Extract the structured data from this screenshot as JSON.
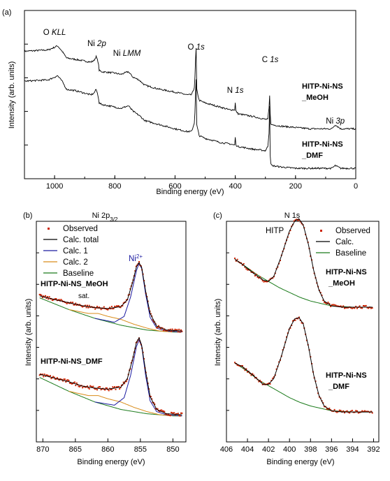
{
  "figure": {
    "panels": [
      "(a)",
      "(b)",
      "(c)"
    ]
  },
  "chart_data": [
    {
      "type": "line",
      "panel": "(a)",
      "title": "",
      "xlabel": "Binding energy (eV)",
      "ylabel": "Intensity (arb. units)",
      "xlim": [
        1100,
        0
      ],
      "x_reversed": true,
      "xticks": [
        1000,
        800,
        600,
        400,
        200,
        0
      ],
      "y_tick_labels": false,
      "peak_annotations": [
        {
          "label": "O KLL",
          "x": 1000
        },
        {
          "label": "Ni 2p",
          "x": 860
        },
        {
          "label": "Ni LMM",
          "x": 760
        },
        {
          "label": "O 1s",
          "x": 530
        },
        {
          "label": "N 1s",
          "x": 400
        },
        {
          "label": "C 1s",
          "x": 284
        },
        {
          "label": "Ni 3p",
          "x": 68
        }
      ],
      "series": [
        {
          "name": "HITP-Ni-NS_MeOH",
          "color": "#000000",
          "x": [
            1100,
            1020,
            990,
            975,
            960,
            930,
            880,
            870,
            862,
            855,
            852,
            845,
            800,
            780,
            755,
            740,
            720,
            700,
            650,
            600,
            560,
            545,
            535,
            532,
            530,
            528,
            520,
            500,
            450,
            420,
            402,
            400,
            398,
            390,
            340,
            300,
            292,
            288,
            285,
            284,
            282,
            278,
            250,
            200,
            150,
            100,
            80,
            68,
            50,
            0
          ],
          "y": [
            0.88,
            0.89,
            0.92,
            0.88,
            0.83,
            0.82,
            0.8,
            0.81,
            0.84,
            0.8,
            0.74,
            0.73,
            0.72,
            0.71,
            0.73,
            0.69,
            0.67,
            0.63,
            0.6,
            0.58,
            0.56,
            0.56,
            0.62,
            0.82,
            0.9,
            0.6,
            0.52,
            0.5,
            0.47,
            0.45,
            0.45,
            0.5,
            0.44,
            0.42,
            0.4,
            0.38,
            0.38,
            0.46,
            0.6,
            0.42,
            0.35,
            0.34,
            0.33,
            0.32,
            0.31,
            0.31,
            0.31,
            0.34,
            0.31,
            0.31
          ]
        },
        {
          "name": "HITP-Ni-NS_DMF",
          "color": "#000000",
          "x": [
            1100,
            1020,
            990,
            975,
            960,
            930,
            880,
            870,
            862,
            855,
            852,
            845,
            800,
            780,
            755,
            740,
            720,
            700,
            650,
            600,
            560,
            545,
            535,
            532,
            530,
            528,
            520,
            500,
            450,
            420,
            402,
            400,
            398,
            390,
            340,
            300,
            292,
            288,
            285,
            284,
            282,
            278,
            250,
            200,
            150,
            100,
            80,
            68,
            50,
            0
          ],
          "y": [
            0.66,
            0.67,
            0.7,
            0.66,
            0.6,
            0.59,
            0.56,
            0.57,
            0.6,
            0.55,
            0.5,
            0.49,
            0.47,
            0.46,
            0.48,
            0.44,
            0.41,
            0.37,
            0.34,
            0.31,
            0.29,
            0.29,
            0.36,
            0.58,
            0.67,
            0.34,
            0.26,
            0.24,
            0.21,
            0.2,
            0.19,
            0.25,
            0.19,
            0.18,
            0.16,
            0.15,
            0.18,
            0.28,
            0.58,
            0.12,
            0.05,
            0.04,
            0.03,
            0.02,
            0.02,
            0.02,
            0.02,
            0.04,
            0.02,
            0.02
          ]
        }
      ]
    },
    {
      "type": "line",
      "panel": "(b)",
      "title": "Ni 2p",
      "title_sub": "3/2",
      "xlabel": "Binding energy (eV)",
      "ylabel": "Intensity (arb. units)",
      "xlim": [
        871,
        848
      ],
      "x_reversed": true,
      "xticks": [
        870,
        865,
        860,
        855,
        850
      ],
      "y_tick_labels": false,
      "legend": [
        {
          "label": "Observed",
          "color": "#cc2200",
          "kind": "dot"
        },
        {
          "label": "Calc. total",
          "color": "#000000",
          "kind": "line"
        },
        {
          "label": "Calc. 1",
          "color": "#1a1aa0",
          "kind": "line"
        },
        {
          "label": "Calc. 2",
          "color": "#d98c1a",
          "kind": "line"
        },
        {
          "label": "Baseline",
          "color": "#1a7a1a",
          "kind": "line"
        }
      ],
      "annotations": [
        {
          "text": "Ni",
          "sup": "2+",
          "x": 855
        },
        {
          "text": "sat.",
          "x": 862
        }
      ],
      "spectra": [
        {
          "name": "HITP-Ni-NS_MeOH",
          "baseline": {
            "x": [
              870.5,
              866,
              862,
              858,
              854,
              850,
              848.5
            ],
            "y": [
              0.46,
              0.34,
              0.25,
              0.18,
              0.13,
              0.11,
              0.11
            ]
          },
          "calc1": {
            "x": [
              862,
              859,
              857.5,
              856.5,
              855.6,
              855.2,
              854.8,
              854.2,
              853.5,
              852.5,
              851,
              848.5
            ],
            "y": [
              0.25,
              0.21,
              0.27,
              0.47,
              0.74,
              0.81,
              0.76,
              0.5,
              0.26,
              0.15,
              0.12,
              0.11
            ]
          },
          "calc2": {
            "x": [
              866,
              863,
              861.5,
              860,
              858,
              856,
              854,
              852,
              850
            ],
            "y": [
              0.34,
              0.3,
              0.3,
              0.27,
              0.24,
              0.19,
              0.15,
              0.12,
              0.11
            ]
          },
          "total": {
            "x": [
              870.5,
              868,
              866,
              864,
              862,
              860,
              858,
              857,
              856.2,
              855.6,
              855.2,
              854.8,
              854.2,
              853.5,
              852.5,
              851,
              848.5
            ],
            "y": [
              0.48,
              0.44,
              0.41,
              0.38,
              0.36,
              0.35,
              0.37,
              0.44,
              0.62,
              0.78,
              0.82,
              0.77,
              0.53,
              0.3,
              0.17,
              0.13,
              0.12
            ]
          }
        },
        {
          "name": "HITP-Ni-NS_DMF",
          "baseline": {
            "x": [
              870.5,
              866,
              862,
              858,
              854,
              850,
              848.5
            ],
            "y": [
              0.46,
              0.33,
              0.23,
              0.16,
              0.12,
              0.1,
              0.1
            ]
          },
          "calc1": {
            "x": [
              862,
              859,
              857.5,
              856.5,
              855.6,
              855.2,
              854.8,
              854.2,
              853.5,
              852.5,
              851,
              848.5
            ],
            "y": [
              0.23,
              0.2,
              0.27,
              0.48,
              0.75,
              0.81,
              0.75,
              0.48,
              0.24,
              0.14,
              0.11,
              0.1
            ]
          },
          "calc2": {
            "x": [
              866,
              863,
              861.5,
              860,
              858,
              856,
              854,
              852,
              850
            ],
            "y": [
              0.33,
              0.29,
              0.29,
              0.26,
              0.23,
              0.18,
              0.14,
              0.11,
              0.1
            ]
          },
          "total": {
            "x": [
              870.5,
              868,
              866,
              864,
              862,
              860,
              858,
              857,
              856.2,
              855.6,
              855.2,
              854.8,
              854.2,
              853.5,
              852.5,
              851,
              848.5
            ],
            "y": [
              0.49,
              0.45,
              0.42,
              0.38,
              0.36,
              0.35,
              0.37,
              0.45,
              0.63,
              0.79,
              0.83,
              0.76,
              0.52,
              0.28,
              0.16,
              0.12,
              0.11
            ]
          }
        }
      ]
    },
    {
      "type": "line",
      "panel": "(c)",
      "title": "N 1s",
      "xlabel": "Binding energy (eV)",
      "ylabel": "Intensity (arb. units)",
      "xlim": [
        406,
        391.5
      ],
      "x_reversed": true,
      "xticks": [
        406,
        404,
        402,
        400,
        398,
        396,
        394,
        392
      ],
      "y_tick_labels": false,
      "legend": [
        {
          "label": "Observed",
          "color": "#cc2200",
          "kind": "dot"
        },
        {
          "label": "Calc.",
          "color": "#000000",
          "kind": "line"
        },
        {
          "label": "Baseline",
          "color": "#1a7a1a",
          "kind": "line"
        }
      ],
      "annotations": [
        {
          "text": "HITP",
          "x": 400.2
        }
      ],
      "spectra": [
        {
          "name": "HITP-Ni-NS_MeOH",
          "baseline": {
            "x": [
              405.2,
              404,
              403,
              402,
              401,
              400,
              399,
              398,
              397,
              396,
              394,
              392
            ],
            "y": [
              0.64,
              0.57,
              0.51,
              0.46,
              0.41,
              0.37,
              0.33,
              0.3,
              0.28,
              0.26,
              0.25,
              0.25
            ]
          },
          "calc": {
            "x": [
              405.2,
              404.5,
              403.5,
              402.5,
              402,
              401.5,
              400.8,
              400,
              399.5,
              399.1,
              398.7,
              398.2,
              397.7,
              397.2,
              396.7,
              396,
              395,
              394,
              392
            ],
            "y": [
              0.64,
              0.6,
              0.53,
              0.47,
              0.46,
              0.5,
              0.66,
              0.87,
              0.95,
              0.97,
              0.92,
              0.76,
              0.55,
              0.39,
              0.3,
              0.26,
              0.25,
              0.25,
              0.25
            ]
          }
        },
        {
          "name": "HITP-Ni-NS_DMF",
          "baseline": {
            "x": [
              405.2,
              404,
              403,
              402,
              401,
              400,
              399,
              398,
              397,
              396,
              394,
              392
            ],
            "y": [
              0.62,
              0.55,
              0.48,
              0.43,
              0.38,
              0.33,
              0.29,
              0.26,
              0.24,
              0.22,
              0.21,
              0.21
            ]
          },
          "calc": {
            "x": [
              405.2,
              404.5,
              403.5,
              402.5,
              402,
              401.5,
              400.8,
              400,
              399.5,
              399.1,
              398.7,
              398.2,
              397.7,
              397.2,
              396.7,
              396,
              395,
              394,
              392
            ],
            "y": [
              0.62,
              0.59,
              0.52,
              0.44,
              0.44,
              0.49,
              0.67,
              0.91,
              0.99,
              1.0,
              0.95,
              0.76,
              0.52,
              0.35,
              0.26,
              0.22,
              0.21,
              0.21,
              0.21
            ]
          }
        }
      ]
    }
  ],
  "colors": {
    "observed": "#cc2200",
    "calc_total": "#000000",
    "calc1": "#1a1aa0",
    "calc2": "#d98c1a",
    "baseline": "#1a7a1a",
    "axis": "#000000"
  }
}
